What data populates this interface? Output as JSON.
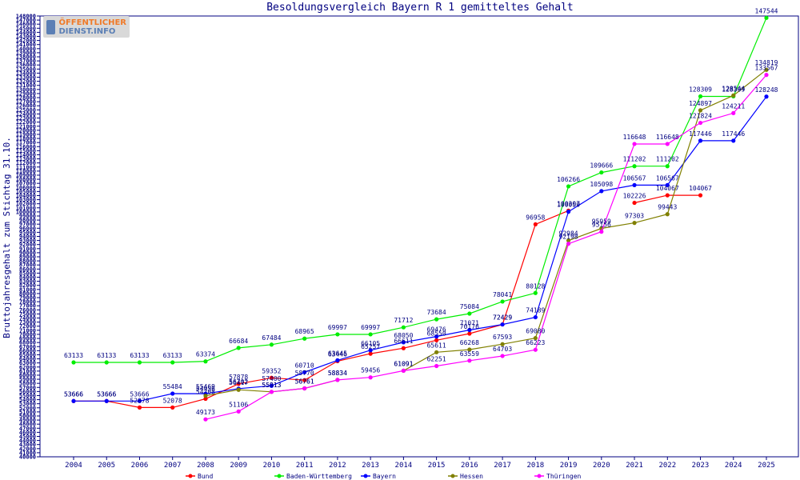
{
  "chart_data": {
    "type": "line",
    "title": "Besoldungsvergleich Bayern R 1 gemitteltes Gehalt",
    "xlabel": "",
    "ylabel": "Bruttojahresgehalt zum Stichtag 31.10.",
    "ylim": [
      40000,
      148000
    ],
    "ytick_step": 1000,
    "categories": [
      "2004",
      "2005",
      "2006",
      "2007",
      "2008",
      "2009",
      "2010",
      "2011",
      "2012",
      "2013",
      "2014",
      "2015",
      "2016",
      "2017",
      "2018",
      "2019",
      "2020",
      "2021",
      "2022",
      "2023",
      "2024",
      "2025"
    ],
    "series": [
      {
        "name": "Bund",
        "color": "#ff0000",
        "values": [
          53666,
          53666,
          52078,
          52078,
          54208,
          57878,
          59352,
          58770,
          63446,
          65257,
          66611,
          68550,
          70176,
          72429,
          96958,
          100307,
          null,
          102226,
          104067,
          104067,
          null,
          null
        ]
      },
      {
        "name": "Baden-Württemberg",
        "color": "#00ee00",
        "values": [
          63133,
          63133,
          63133,
          63133,
          63374,
          66684,
          67484,
          68965,
          69997,
          69997,
          71712,
          73684,
          75084,
          78041,
          80128,
          106266,
          109666,
          111202,
          111202,
          128309,
          128309,
          147544
        ]
      },
      {
        "name": "Bayern",
        "color": "#0000ff",
        "values": [
          53666,
          53666,
          53666,
          55484,
          55469,
          56702,
          57400,
          60710,
          63645,
          66105,
          68050,
          69476,
          71071,
          72429,
          74189,
          100050,
          105098,
          106567,
          106567,
          117446,
          117446,
          128248
        ]
      },
      {
        "name": "Hessen",
        "color": "#808000",
        "values": [
          null,
          null,
          null,
          null,
          54956,
          56417,
          55913,
          56761,
          58834,
          null,
          61091,
          65611,
          66268,
          67593,
          69080,
          92984,
          95959,
          97303,
          99443,
          124897,
          128544,
          134819
        ]
      },
      {
        "name": "Thüringen",
        "color": "#ff00ff",
        "values": [
          null,
          null,
          null,
          null,
          49173,
          51106,
          55913,
          56761,
          58834,
          59456,
          61091,
          62251,
          63559,
          64703,
          66223,
          92198,
          95156,
          116648,
          116648,
          121824,
          124211,
          133567
        ]
      }
    ],
    "legend_position": "bottom",
    "grid": false
  },
  "logo": {
    "line1": "ÖFFENTLICHER",
    "line2": "DIENST.INFO"
  }
}
